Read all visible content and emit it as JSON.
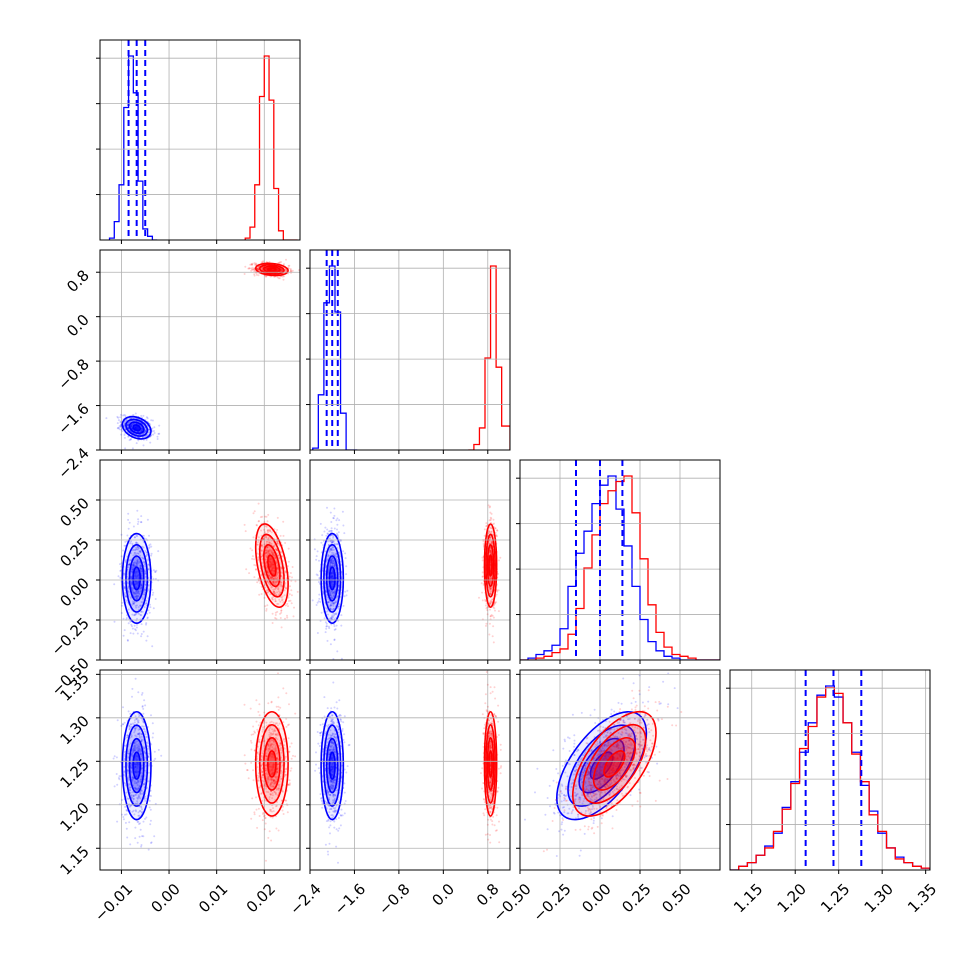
{
  "chart_data": {
    "type": "corner",
    "grid": true,
    "series": [
      {
        "name": "",
        "color": "#0000ff"
      },
      {
        "name": "",
        "color": "#ff0000"
      }
    ],
    "parameters": [
      {
        "range": [
          -0.0145,
          0.0275
        ],
        "ticks": [
          -0.01,
          0.0,
          0.01,
          0.02
        ],
        "tick_labels": [
          "−0.01",
          "0.00",
          "0.01",
          "0.02"
        ]
      },
      {
        "range": [
          -2.4,
          1.2
        ],
        "ticks": [
          -2.4,
          -1.6,
          -0.8,
          0.0,
          0.8
        ],
        "tick_labels": [
          "−2.4",
          "−1.6",
          "−0.8",
          "0.0",
          "0.8"
        ]
      },
      {
        "range": [
          -0.5,
          0.75
        ],
        "ticks": [
          -0.5,
          -0.25,
          0.0,
          0.25,
          0.5
        ],
        "tick_labels": [
          "−0.50",
          "−0.25",
          "0.00",
          "0.25",
          "0.50"
        ]
      },
      {
        "range": [
          1.125,
          1.355
        ],
        "ticks": [
          1.15,
          1.2,
          1.25,
          1.3,
          1.35
        ],
        "tick_labels": [
          "1.15",
          "1.20",
          "1.25",
          "1.30",
          "1.35"
        ]
      }
    ],
    "posteriors": {
      "blue": {
        "mean": [
          -0.0068,
          -2.0,
          0.01,
          1.245
        ],
        "std": [
          0.0015,
          0.1,
          0.14,
          0.031
        ]
      },
      "red": {
        "mean": [
          0.0216,
          0.85,
          0.09,
          1.247
        ],
        "std": [
          0.0017,
          0.055,
          0.13,
          0.03
        ]
      }
    },
    "quantile_lines": {
      "color": "#0000ff",
      "values": [
        [
          -0.0085,
          -0.0068,
          -0.005
        ],
        [
          -2.1,
          -2.0,
          -1.9
        ],
        [
          -0.15,
          0.0,
          0.14
        ],
        [
          1.212,
          1.244,
          1.276
        ]
      ]
    },
    "histograms": [
      {
        "bins": [
          -0.0125,
          -0.0115,
          -0.0105,
          -0.0095,
          -0.0085,
          -0.0075,
          -0.0065,
          -0.0055,
          -0.0045,
          -0.0035,
          -0.0025
        ],
        "blue": [
          0.01,
          0.1,
          0.3,
          0.72,
          1.0,
          0.8,
          0.32,
          0.06,
          0.02,
          0.0
        ],
        "red_bins": [
          0.016,
          0.017,
          0.018,
          0.019,
          0.02,
          0.021,
          0.022,
          0.023,
          0.024,
          0.025,
          0.026,
          0.027
        ],
        "red": [
          0.01,
          0.07,
          0.3,
          0.78,
          1.0,
          0.76,
          0.28,
          0.05,
          0.0,
          0.0,
          0.0
        ]
      },
      {
        "bins": [
          -2.35,
          -2.25,
          -2.15,
          -2.05,
          -1.95,
          -1.85,
          -1.75,
          -1.65,
          -1.55
        ],
        "blue": [
          0.01,
          0.3,
          0.8,
          1.0,
          0.75,
          0.2,
          0.0,
          0.0
        ],
        "red_bins": [
          0.45,
          0.55,
          0.65,
          0.75,
          0.85,
          0.95,
          1.05,
          1.15,
          1.2
        ],
        "red": [
          0.0,
          0.03,
          0.12,
          0.5,
          1.0,
          0.45,
          0.13,
          0.13
        ]
      },
      {
        "bins": [
          -0.5,
          -0.45,
          -0.4,
          -0.35,
          -0.3,
          -0.25,
          -0.2,
          -0.15,
          -0.1,
          -0.05,
          0.0,
          0.05,
          0.1,
          0.15,
          0.2,
          0.25,
          0.3,
          0.35,
          0.4,
          0.45,
          0.5,
          0.55,
          0.6,
          0.65,
          0.7,
          0.75
        ],
        "blue": [
          0.0,
          0.01,
          0.03,
          0.05,
          0.08,
          0.17,
          0.4,
          0.58,
          0.7,
          0.85,
          0.95,
          1.0,
          0.82,
          0.62,
          0.4,
          0.22,
          0.1,
          0.05,
          0.02,
          0.01,
          0.0,
          0.0,
          0.0,
          0.0,
          0.0
        ],
        "red": [
          0.0,
          0.0,
          0.01,
          0.02,
          0.04,
          0.06,
          0.14,
          0.28,
          0.5,
          0.68,
          0.85,
          0.92,
          0.97,
          1.0,
          0.8,
          0.55,
          0.3,
          0.15,
          0.07,
          0.03,
          0.02,
          0.01,
          0.0,
          0.0,
          0.0
        ]
      },
      {
        "bins": [
          1.125,
          1.135,
          1.145,
          1.155,
          1.165,
          1.175,
          1.185,
          1.195,
          1.205,
          1.215,
          1.225,
          1.235,
          1.245,
          1.255,
          1.265,
          1.275,
          1.285,
          1.295,
          1.305,
          1.315,
          1.325,
          1.335,
          1.345,
          1.355
        ],
        "blue": [
          0.0,
          0.02,
          0.04,
          0.08,
          0.13,
          0.2,
          0.34,
          0.48,
          0.64,
          0.8,
          0.95,
          1.0,
          0.94,
          0.8,
          0.64,
          0.46,
          0.32,
          0.2,
          0.12,
          0.07,
          0.04,
          0.02,
          0.01
        ],
        "red": [
          0.0,
          0.02,
          0.04,
          0.08,
          0.12,
          0.21,
          0.33,
          0.47,
          0.66,
          0.78,
          0.94,
          0.99,
          0.96,
          0.8,
          0.63,
          0.48,
          0.3,
          0.21,
          0.12,
          0.06,
          0.04,
          0.02,
          0.01
        ]
      }
    ]
  }
}
